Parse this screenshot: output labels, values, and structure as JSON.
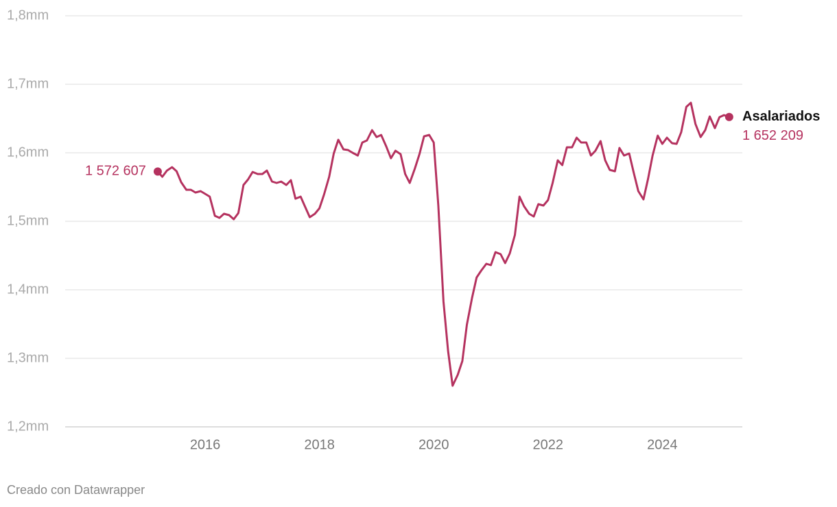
{
  "chart_data": {
    "type": "line",
    "x": [
      2015.17,
      2015.25,
      2015.33,
      2015.42,
      2015.5,
      2015.58,
      2015.67,
      2015.75,
      2015.83,
      2015.92,
      2016,
      2016.08,
      2016.17,
      2016.25,
      2016.33,
      2016.42,
      2016.5,
      2016.58,
      2016.67,
      2016.75,
      2016.83,
      2016.92,
      2017,
      2017.08,
      2017.17,
      2017.25,
      2017.33,
      2017.42,
      2017.5,
      2017.58,
      2017.67,
      2017.75,
      2017.83,
      2017.92,
      2018,
      2018.08,
      2018.17,
      2018.25,
      2018.33,
      2018.42,
      2018.5,
      2018.58,
      2018.67,
      2018.75,
      2018.83,
      2018.92,
      2019,
      2019.08,
      2019.17,
      2019.25,
      2019.33,
      2019.42,
      2019.5,
      2019.58,
      2019.67,
      2019.75,
      2019.83,
      2019.92,
      2020,
      2020.08,
      2020.17,
      2020.25,
      2020.33,
      2020.42,
      2020.5,
      2020.58,
      2020.67,
      2020.75,
      2020.83,
      2020.92,
      2021,
      2021.08,
      2021.17,
      2021.25,
      2021.33,
      2021.42,
      2021.5,
      2021.58,
      2021.67,
      2021.75,
      2021.83,
      2021.92,
      2022,
      2022.08,
      2022.17,
      2022.25,
      2022.33,
      2022.42,
      2022.5,
      2022.58,
      2022.67,
      2022.75,
      2022.83,
      2022.92,
      2023,
      2023.08,
      2023.17,
      2023.25,
      2023.33,
      2023.42,
      2023.5,
      2023.58,
      2023.67,
      2023.75,
      2023.83,
      2023.92,
      2024,
      2024.08,
      2024.17,
      2024.25,
      2024.33,
      2024.42,
      2024.5,
      2024.58,
      2024.67,
      2024.75,
      2024.83,
      2024.92,
      2025,
      2025.08,
      2025.17
    ],
    "series": [
      {
        "name": "Asalariados",
        "color": "#b5325f",
        "values": [
          1.572607,
          1.565,
          1.574,
          1.579,
          1.573,
          1.557,
          1.546,
          1.546,
          1.542,
          1.544,
          1.54,
          1.536,
          1.508,
          1.505,
          1.511,
          1.509,
          1.503,
          1.512,
          1.553,
          1.561,
          1.572,
          1.569,
          1.569,
          1.574,
          1.558,
          1.556,
          1.558,
          1.553,
          1.56,
          1.533,
          1.536,
          1.521,
          1.506,
          1.511,
          1.519,
          1.539,
          1.565,
          1.599,
          1.619,
          1.605,
          1.604,
          1.6,
          1.596,
          1.615,
          1.618,
          1.633,
          1.623,
          1.626,
          1.609,
          1.592,
          1.603,
          1.598,
          1.569,
          1.556,
          1.577,
          1.598,
          1.624,
          1.626,
          1.615,
          1.523,
          1.383,
          1.311,
          1.26,
          1.276,
          1.296,
          1.349,
          1.388,
          1.418,
          1.428,
          1.438,
          1.436,
          1.455,
          1.452,
          1.439,
          1.453,
          1.48,
          1.536,
          1.522,
          1.511,
          1.507,
          1.525,
          1.523,
          1.531,
          1.556,
          1.589,
          1.582,
          1.608,
          1.608,
          1.622,
          1.615,
          1.615,
          1.596,
          1.603,
          1.617,
          1.589,
          1.575,
          1.573,
          1.607,
          1.596,
          1.599,
          1.571,
          1.544,
          1.532,
          1.562,
          1.596,
          1.625,
          1.613,
          1.622,
          1.614,
          1.613,
          1.63,
          1.667,
          1.673,
          1.642,
          1.623,
          1.633,
          1.653,
          1.636,
          1.652,
          1.655,
          1.652209
        ],
        "value_labels": {
          "0": "1 572 607",
          "120": "1 652 209"
        }
      }
    ],
    "xlim": [
      2013.55,
      2025.4
    ],
    "xticks": [
      2016,
      2018,
      2020,
      2022,
      2024
    ],
    "ylim": [
      1.2,
      1.8
    ],
    "yticks": [
      {
        "value": 1.2,
        "label": "1,2mm"
      },
      {
        "value": 1.3,
        "label": "1,3mm"
      },
      {
        "value": 1.4,
        "label": "1,4mm"
      },
      {
        "value": 1.5,
        "label": "1,5mm"
      },
      {
        "value": 1.6,
        "label": "1,6mm"
      },
      {
        "value": 1.7,
        "label": "1,7mm"
      },
      {
        "value": 1.8,
        "label": "1,8mm"
      }
    ],
    "grid": true,
    "source": "Creado con Datawrapper"
  }
}
